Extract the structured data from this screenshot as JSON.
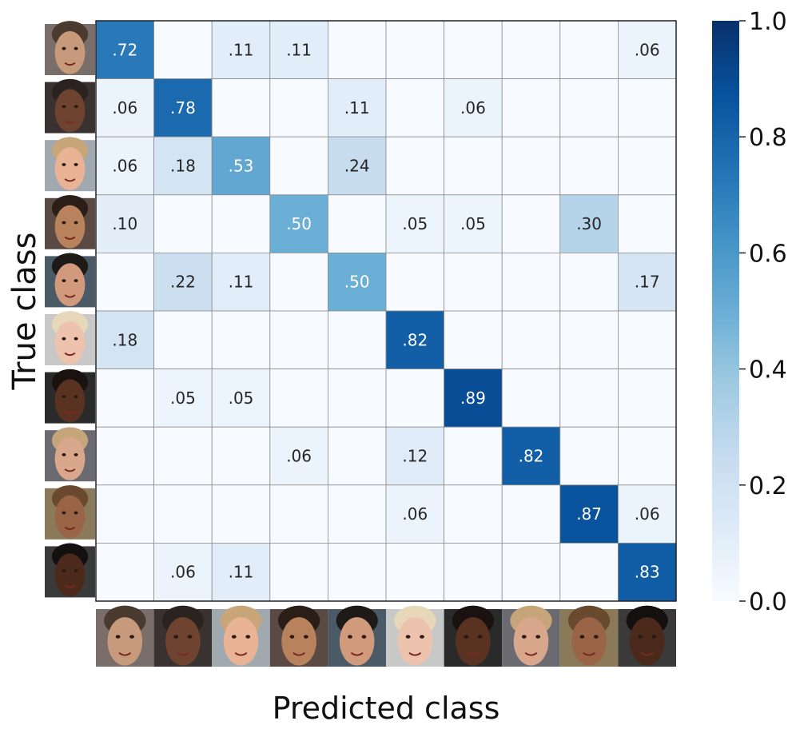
{
  "chart_data": {
    "type": "heatmap",
    "xlabel": "Predicted class",
    "ylabel": "True class",
    "row_labels": [
      "face-1",
      "face-2",
      "face-3",
      "face-4",
      "face-5",
      "face-6",
      "face-7",
      "face-8",
      "face-9",
      "face-10"
    ],
    "col_labels": [
      "face-1",
      "face-2",
      "face-3",
      "face-4",
      "face-5",
      "face-6",
      "face-7",
      "face-8",
      "face-9",
      "face-10"
    ],
    "label_type": "face-photo-thumbnails",
    "cell_labels": [
      [
        ".72",
        "",
        ".11",
        ".11",
        "",
        "",
        "",
        "",
        "",
        ".06"
      ],
      [
        ".06",
        ".78",
        "",
        "",
        ".11",
        "",
        ".06",
        "",
        "",
        ""
      ],
      [
        ".06",
        ".18",
        ".53",
        "",
        ".24",
        "",
        "",
        "",
        "",
        ""
      ],
      [
        ".10",
        "",
        "",
        ".50",
        "",
        ".05",
        ".05",
        "",
        ".30",
        ""
      ],
      [
        "",
        ".22",
        ".11",
        "",
        ".50",
        "",
        "",
        "",
        "",
        ".17"
      ],
      [
        ".18",
        "",
        "",
        "",
        "",
        ".82",
        "",
        "",
        "",
        ""
      ],
      [
        "",
        ".05",
        ".05",
        "",
        "",
        "",
        ".89",
        "",
        "",
        ""
      ],
      [
        "",
        "",
        "",
        ".06",
        "",
        ".12",
        "",
        ".82",
        "",
        ""
      ],
      [
        "",
        "",
        "",
        "",
        "",
        ".06",
        "",
        "",
        ".87",
        ".06"
      ],
      [
        "",
        ".06",
        ".11",
        "",
        "",
        "",
        "",
        "",
        "",
        ".83"
      ]
    ],
    "values": [
      [
        0.72,
        0,
        0.11,
        0.11,
        0,
        0,
        0,
        0,
        0,
        0.06
      ],
      [
        0.06,
        0.78,
        0,
        0,
        0.11,
        0,
        0.06,
        0,
        0,
        0
      ],
      [
        0.06,
        0.18,
        0.53,
        0,
        0.24,
        0,
        0,
        0,
        0,
        0
      ],
      [
        0.1,
        0,
        0,
        0.5,
        0,
        0.05,
        0.05,
        0,
        0.3,
        0
      ],
      [
        0,
        0.22,
        0.11,
        0,
        0.5,
        0,
        0,
        0,
        0,
        0.17
      ],
      [
        0.18,
        0,
        0,
        0,
        0,
        0.82,
        0,
        0,
        0,
        0
      ],
      [
        0,
        0.05,
        0.05,
        0,
        0,
        0,
        0.89,
        0,
        0,
        0
      ],
      [
        0,
        0,
        0,
        0.06,
        0,
        0.12,
        0,
        0.82,
        0,
        0
      ],
      [
        0,
        0,
        0,
        0,
        0,
        0.06,
        0,
        0,
        0.87,
        0.06
      ],
      [
        0,
        0.06,
        0.11,
        0,
        0,
        0,
        0,
        0,
        0,
        0.83
      ]
    ],
    "colormap": "Blues",
    "colorbar": {
      "range": [
        0.0,
        1.0
      ],
      "ticks": [
        0.0,
        0.2,
        0.4,
        0.6,
        0.8,
        1.0
      ],
      "tick_labels": [
        "0.0",
        "0.2",
        "0.4",
        "0.6",
        "0.8",
        "1.0"
      ]
    },
    "grid": true
  },
  "colors": {
    "low": "#f7fbff",
    "high": "#08306b",
    "gridline": "#8c8c8c",
    "text_dark": "#262626",
    "text_light": "#ffffff"
  }
}
